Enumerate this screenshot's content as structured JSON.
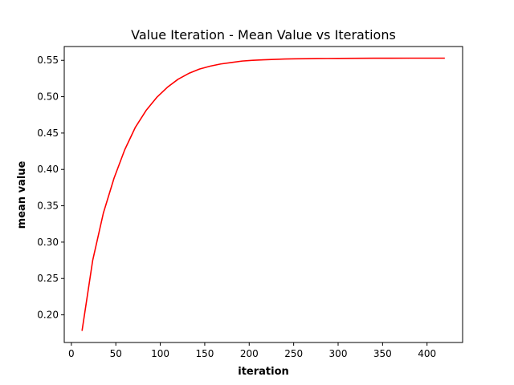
{
  "chart_data": {
    "type": "line",
    "title": "Value Iteration - Mean Value vs Iterations",
    "xlabel": "iteration",
    "ylabel": "mean value",
    "xlim": [
      -8,
      440
    ],
    "ylim": [
      0.162,
      0.569
    ],
    "xticks": [
      0,
      50,
      100,
      150,
      200,
      250,
      300,
      350,
      400
    ],
    "yticks": [
      0.2,
      0.25,
      0.3,
      0.35,
      0.4,
      0.45,
      0.5,
      0.55
    ],
    "grid": false,
    "legend": "none",
    "series": [
      {
        "color": "#ff0000",
        "x": [
          12,
          24,
          36,
          48,
          60,
          72,
          84,
          96,
          108,
          120,
          132,
          144,
          156,
          168,
          180,
          192,
          204,
          216,
          228,
          240,
          252,
          264,
          276,
          288,
          300,
          320,
          340,
          360,
          380,
          400,
          420
        ],
        "y": [
          0.178,
          0.275,
          0.34,
          0.388,
          0.427,
          0.458,
          0.481,
          0.499,
          0.513,
          0.524,
          0.532,
          0.538,
          0.542,
          0.545,
          0.547,
          0.549,
          0.55,
          0.5507,
          0.5513,
          0.5518,
          0.5521,
          0.5523,
          0.5525,
          0.5526,
          0.5527,
          0.5528,
          0.5529,
          0.5529,
          0.553,
          0.553,
          0.553
        ]
      }
    ]
  }
}
